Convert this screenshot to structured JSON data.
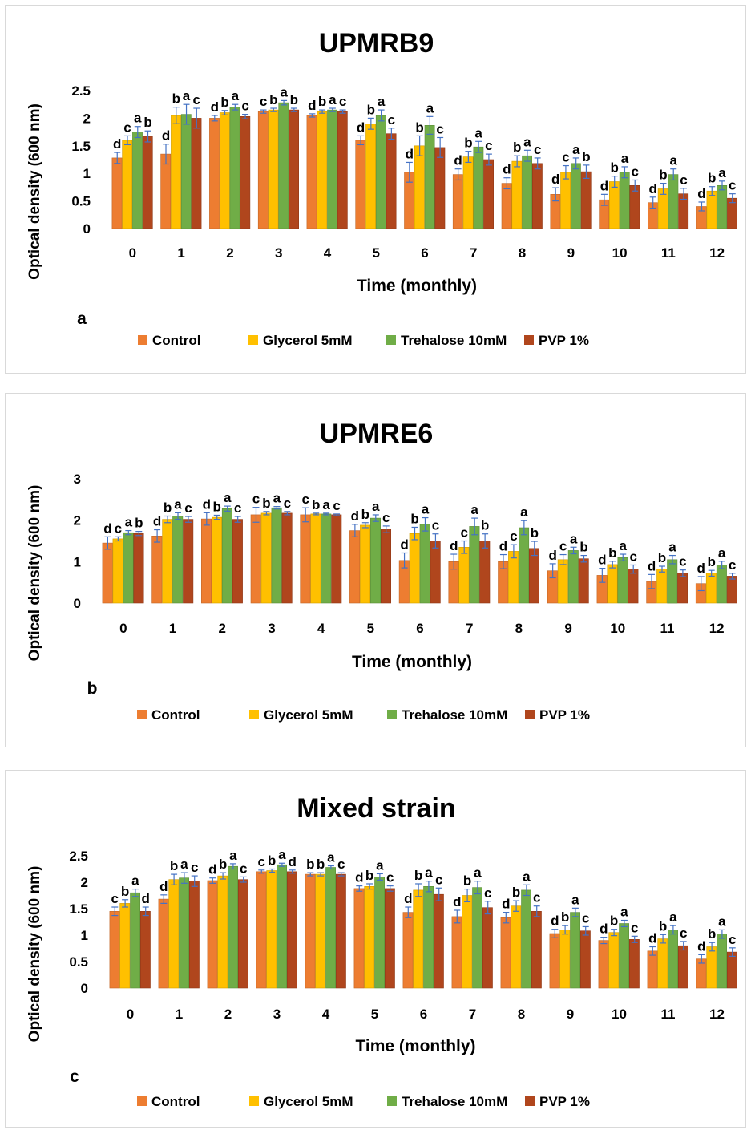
{
  "legend": [
    {
      "name": "Control",
      "color": "#ed7d31"
    },
    {
      "name": "Glycerol 5mM",
      "color": "#ffc000"
    },
    {
      "name": "Trehalose  10mM",
      "color": "#70ad47"
    },
    {
      "name": "PVP 1%",
      "color": "#b0461d"
    }
  ],
  "chart_data": [
    {
      "type": "bar",
      "panel_label": "a",
      "title": "UPMRB9",
      "xlabel": "Time (monthly)",
      "ylabel": "Optical density (600 nm)",
      "categories": [
        "0",
        "1",
        "2",
        "3",
        "4",
        "5",
        "6",
        "7",
        "8",
        "9",
        "10",
        "11",
        "12"
      ],
      "ylim": [
        0,
        2.5
      ],
      "yticks": [
        "0",
        "0.5",
        "1",
        "1.5",
        "2",
        "2.5"
      ],
      "grid": false,
      "legend_position": "bottom",
      "series": [
        {
          "name": "Control",
          "values": [
            1.28,
            1.35,
            2.0,
            2.12,
            2.05,
            1.6,
            1.02,
            0.98,
            0.82,
            0.62,
            0.52,
            0.47,
            0.4
          ],
          "errors": [
            0.1,
            0.18,
            0.05,
            0.03,
            0.03,
            0.08,
            0.18,
            0.1,
            0.1,
            0.12,
            0.1,
            0.1,
            0.08
          ]
        },
        {
          "name": "Glycerol 5mM",
          "values": [
            1.6,
            2.05,
            2.1,
            2.15,
            2.12,
            1.9,
            1.5,
            1.3,
            1.22,
            1.02,
            0.85,
            0.72,
            0.68
          ],
          "errors": [
            0.08,
            0.15,
            0.04,
            0.03,
            0.03,
            0.1,
            0.18,
            0.1,
            0.1,
            0.12,
            0.1,
            0.1,
            0.08
          ]
        },
        {
          "name": "Trehalose  10mM",
          "values": [
            1.75,
            2.07,
            2.2,
            2.28,
            2.15,
            2.05,
            1.87,
            1.48,
            1.32,
            1.18,
            1.02,
            0.98,
            0.78
          ],
          "errors": [
            0.1,
            0.18,
            0.05,
            0.04,
            0.03,
            0.1,
            0.16,
            0.1,
            0.1,
            0.1,
            0.1,
            0.1,
            0.08
          ]
        },
        {
          "name": "PVP 1%",
          "values": [
            1.67,
            2.0,
            2.03,
            2.15,
            2.12,
            1.72,
            1.47,
            1.25,
            1.18,
            1.03,
            0.78,
            0.63,
            0.55
          ],
          "errors": [
            0.1,
            0.18,
            0.04,
            0.03,
            0.03,
            0.1,
            0.18,
            0.1,
            0.1,
            0.12,
            0.1,
            0.1,
            0.08
          ]
        }
      ],
      "significance_letters": [
        [
          "d",
          "c",
          "a",
          "b"
        ],
        [
          "d",
          "b",
          "a",
          "c"
        ],
        [
          "d",
          "b",
          "a",
          "c"
        ],
        [
          "c",
          "b",
          "a",
          "b"
        ],
        [
          "d",
          "b",
          "a",
          "c"
        ],
        [
          "d",
          "b",
          "a",
          "c"
        ],
        [
          "d",
          "b",
          "a",
          "c"
        ],
        [
          "d",
          "b",
          "a",
          "c"
        ],
        [
          "d",
          "b",
          "a",
          "c"
        ],
        [
          "d",
          "c",
          "a",
          "b"
        ],
        [
          "d",
          "b",
          "a",
          "c"
        ],
        [
          "d",
          "b",
          "a",
          "c"
        ],
        [
          "d",
          "b",
          "a",
          "c"
        ]
      ]
    },
    {
      "type": "bar",
      "panel_label": "b",
      "title": "UPMRE6",
      "xlabel": "Time (monthly)",
      "ylabel": "Optical density (600 nm)",
      "categories": [
        "0",
        "1",
        "2",
        "3",
        "4",
        "5",
        "6",
        "7",
        "8",
        "9",
        "10",
        "11",
        "12"
      ],
      "ylim": [
        0,
        3
      ],
      "yticks": [
        "0",
        "1",
        "2",
        "3"
      ],
      "grid": false,
      "legend_position": "bottom",
      "series": [
        {
          "name": "Control",
          "values": [
            1.45,
            1.62,
            2.03,
            2.13,
            2.13,
            1.75,
            1.03,
            1.0,
            1.0,
            0.78,
            0.67,
            0.52,
            0.47
          ],
          "errors": [
            0.15,
            0.15,
            0.15,
            0.18,
            0.17,
            0.15,
            0.18,
            0.18,
            0.17,
            0.17,
            0.17,
            0.17,
            0.17
          ]
        },
        {
          "name": "Glycerol 5mM",
          "values": [
            1.55,
            2.02,
            2.07,
            2.17,
            2.15,
            1.88,
            1.68,
            1.35,
            1.25,
            1.05,
            0.93,
            0.82,
            0.72
          ],
          "errors": [
            0.05,
            0.08,
            0.05,
            0.04,
            0.02,
            0.06,
            0.15,
            0.15,
            0.16,
            0.12,
            0.08,
            0.07,
            0.07
          ]
        },
        {
          "name": "Trehalose  10mM",
          "values": [
            1.7,
            2.1,
            2.28,
            2.3,
            2.15,
            2.05,
            1.9,
            1.85,
            1.82,
            1.27,
            1.1,
            1.05,
            0.92
          ],
          "errors": [
            0.05,
            0.08,
            0.06,
            0.03,
            0.02,
            0.08,
            0.16,
            0.2,
            0.17,
            0.08,
            0.08,
            0.1,
            0.09
          ]
        },
        {
          "name": "PVP 1%",
          "values": [
            1.68,
            2.02,
            2.02,
            2.17,
            2.13,
            1.78,
            1.5,
            1.5,
            1.32,
            1.07,
            0.82,
            0.72,
            0.65
          ],
          "errors": [
            0.05,
            0.07,
            0.07,
            0.04,
            0.02,
            0.08,
            0.17,
            0.17,
            0.17,
            0.08,
            0.1,
            0.08,
            0.07
          ]
        }
      ],
      "significance_letters": [
        [
          "d",
          "c",
          "a",
          "b"
        ],
        [
          "d",
          "b",
          "a",
          "c"
        ],
        [
          "d",
          "b",
          "a",
          "c"
        ],
        [
          "c",
          "b",
          "a",
          "c"
        ],
        [
          "c",
          "b",
          "a",
          "c"
        ],
        [
          "d",
          "b",
          "a",
          "c"
        ],
        [
          "d",
          "b",
          "a",
          "c"
        ],
        [
          "d",
          "c",
          "a",
          "b"
        ],
        [
          "d",
          "c",
          "a",
          "b"
        ],
        [
          "d",
          "c",
          "a",
          "b"
        ],
        [
          "d",
          "b",
          "a",
          "c"
        ],
        [
          "d",
          "b",
          "a",
          "c"
        ],
        [
          "d",
          "b",
          "a",
          "c"
        ]
      ]
    },
    {
      "type": "bar",
      "panel_label": "c",
      "title": "Mixed strain",
      "xlabel": "Time (monthly)",
      "ylabel": "Optical density (600 nm)",
      "categories": [
        "0",
        "1",
        "2",
        "3",
        "4",
        "5",
        "6",
        "7",
        "8",
        "9",
        "10",
        "11",
        "12"
      ],
      "ylim": [
        0,
        2.5
      ],
      "yticks": [
        "0",
        "0.5",
        "1",
        "1.5",
        "2",
        "2.5"
      ],
      "grid": false,
      "legend_position": "bottom",
      "series": [
        {
          "name": "Control",
          "values": [
            1.45,
            1.68,
            2.03,
            2.2,
            2.15,
            1.88,
            1.43,
            1.35,
            1.33,
            1.03,
            0.9,
            0.7,
            0.55
          ],
          "errors": [
            0.08,
            0.08,
            0.05,
            0.03,
            0.03,
            0.05,
            0.1,
            0.12,
            0.1,
            0.08,
            0.06,
            0.08,
            0.08
          ]
        },
        {
          "name": "Glycerol 5mM",
          "values": [
            1.6,
            2.05,
            2.12,
            2.22,
            2.15,
            1.92,
            1.85,
            1.75,
            1.55,
            1.1,
            1.05,
            0.93,
            0.78
          ],
          "errors": [
            0.07,
            0.1,
            0.06,
            0.03,
            0.03,
            0.05,
            0.12,
            0.12,
            0.1,
            0.08,
            0.06,
            0.08,
            0.08
          ]
        },
        {
          "name": "Trehalose  10mM",
          "values": [
            1.8,
            2.08,
            2.3,
            2.33,
            2.28,
            2.1,
            1.92,
            1.9,
            1.85,
            1.43,
            1.22,
            1.1,
            1.02
          ],
          "errors": [
            0.07,
            0.1,
            0.05,
            0.03,
            0.03,
            0.06,
            0.1,
            0.12,
            0.1,
            0.08,
            0.06,
            0.08,
            0.08
          ]
        },
        {
          "name": "PVP 1%",
          "values": [
            1.45,
            2.02,
            2.05,
            2.2,
            2.15,
            1.88,
            1.77,
            1.52,
            1.45,
            1.08,
            0.92,
            0.8,
            0.68
          ],
          "errors": [
            0.08,
            0.1,
            0.05,
            0.03,
            0.03,
            0.05,
            0.12,
            0.12,
            0.1,
            0.08,
            0.06,
            0.08,
            0.08
          ]
        }
      ],
      "significance_letters": [
        [
          "c",
          "b",
          "a",
          "d"
        ],
        [
          "d",
          "b",
          "a",
          "c"
        ],
        [
          "d",
          "b",
          "a",
          "c"
        ],
        [
          "c",
          "b",
          "a",
          "d"
        ],
        [
          "b",
          "b",
          "a",
          "c"
        ],
        [
          "d",
          "b",
          "a",
          "c"
        ],
        [
          "d",
          "b",
          "a",
          "c"
        ],
        [
          "d",
          "b",
          "a",
          "c"
        ],
        [
          "d",
          "b",
          "a",
          "c"
        ],
        [
          "d",
          "b",
          "a",
          "c"
        ],
        [
          "d",
          "b",
          "a",
          "c"
        ],
        [
          "d",
          "b",
          "a",
          "c"
        ],
        [
          "d",
          "b",
          "a",
          "c"
        ]
      ]
    }
  ]
}
